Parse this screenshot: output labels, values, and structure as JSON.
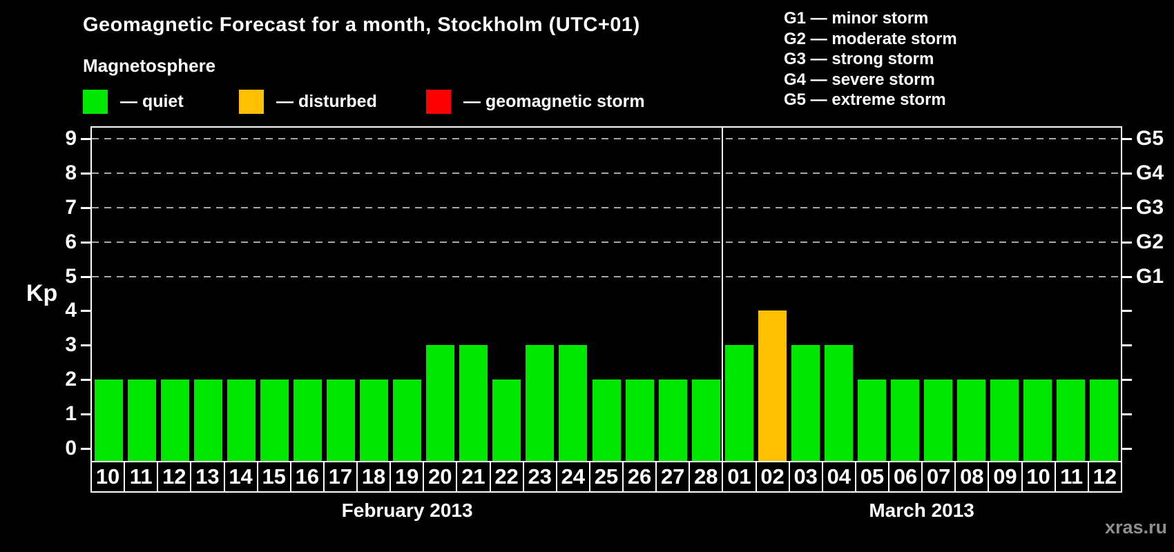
{
  "title": "Geomagnetic Forecast for a month, Stockholm (UTC+01)",
  "legend": {
    "heading": "Magnetosphere",
    "items": [
      {
        "status": "quiet",
        "label": "— quiet",
        "color": "#00e800"
      },
      {
        "status": "disturbed",
        "label": "— disturbed",
        "color": "#fec000"
      },
      {
        "status": "storm",
        "label": "— geomagnetic storm",
        "color": "#ff0000"
      }
    ]
  },
  "storm_scale_legend": [
    "G1 — minor storm",
    "G2 — moderate storm",
    "G3 — strong storm",
    "G4 — severe storm",
    "G5 — extreme storm"
  ],
  "watermark": "xras.ru",
  "chart_data": {
    "type": "bar",
    "title": "Geomagnetic Forecast for a month, Stockholm (UTC+01)",
    "ylabel": "Kp",
    "ylim": [
      0,
      9.3
    ],
    "y_ticks": [
      0,
      1,
      2,
      3,
      4,
      5,
      6,
      7,
      8,
      9
    ],
    "gridlines_at": [
      5,
      6,
      7,
      8,
      9
    ],
    "grid_style": "dashed",
    "legend_position": "top",
    "right_axis": [
      {
        "kp": 5,
        "label": "G1"
      },
      {
        "kp": 6,
        "label": "G2"
      },
      {
        "kp": 7,
        "label": "G3"
      },
      {
        "kp": 8,
        "label": "G4"
      },
      {
        "kp": 9,
        "label": "G5"
      }
    ],
    "status_colors": {
      "quiet": "#00e800",
      "disturbed": "#fec000",
      "storm": "#ff0000"
    },
    "months": [
      {
        "label": "February 2013",
        "days": [
          {
            "date": "10",
            "kp": 2,
            "status": "quiet"
          },
          {
            "date": "11",
            "kp": 2,
            "status": "quiet"
          },
          {
            "date": "12",
            "kp": 2,
            "status": "quiet"
          },
          {
            "date": "13",
            "kp": 2,
            "status": "quiet"
          },
          {
            "date": "14",
            "kp": 2,
            "status": "quiet"
          },
          {
            "date": "15",
            "kp": 2,
            "status": "quiet"
          },
          {
            "date": "16",
            "kp": 2,
            "status": "quiet"
          },
          {
            "date": "17",
            "kp": 2,
            "status": "quiet"
          },
          {
            "date": "18",
            "kp": 2,
            "status": "quiet"
          },
          {
            "date": "19",
            "kp": 2,
            "status": "quiet"
          },
          {
            "date": "20",
            "kp": 3,
            "status": "quiet"
          },
          {
            "date": "21",
            "kp": 3,
            "status": "quiet"
          },
          {
            "date": "22",
            "kp": 2,
            "status": "quiet"
          },
          {
            "date": "23",
            "kp": 3,
            "status": "quiet"
          },
          {
            "date": "24",
            "kp": 3,
            "status": "quiet"
          },
          {
            "date": "25",
            "kp": 2,
            "status": "quiet"
          },
          {
            "date": "26",
            "kp": 2,
            "status": "quiet"
          },
          {
            "date": "27",
            "kp": 2,
            "status": "quiet"
          },
          {
            "date": "28",
            "kp": 2,
            "status": "quiet"
          }
        ]
      },
      {
        "label": "March 2013",
        "days": [
          {
            "date": "01",
            "kp": 3,
            "status": "quiet"
          },
          {
            "date": "02",
            "kp": 4,
            "status": "disturbed"
          },
          {
            "date": "03",
            "kp": 3,
            "status": "quiet"
          },
          {
            "date": "04",
            "kp": 3,
            "status": "quiet"
          },
          {
            "date": "05",
            "kp": 2,
            "status": "quiet"
          },
          {
            "date": "06",
            "kp": 2,
            "status": "quiet"
          },
          {
            "date": "07",
            "kp": 2,
            "status": "quiet"
          },
          {
            "date": "08",
            "kp": 2,
            "status": "quiet"
          },
          {
            "date": "09",
            "kp": 2,
            "status": "quiet"
          },
          {
            "date": "10",
            "kp": 2,
            "status": "quiet"
          },
          {
            "date": "11",
            "kp": 2,
            "status": "quiet"
          },
          {
            "date": "12",
            "kp": 2,
            "status": "quiet"
          }
        ]
      }
    ]
  }
}
